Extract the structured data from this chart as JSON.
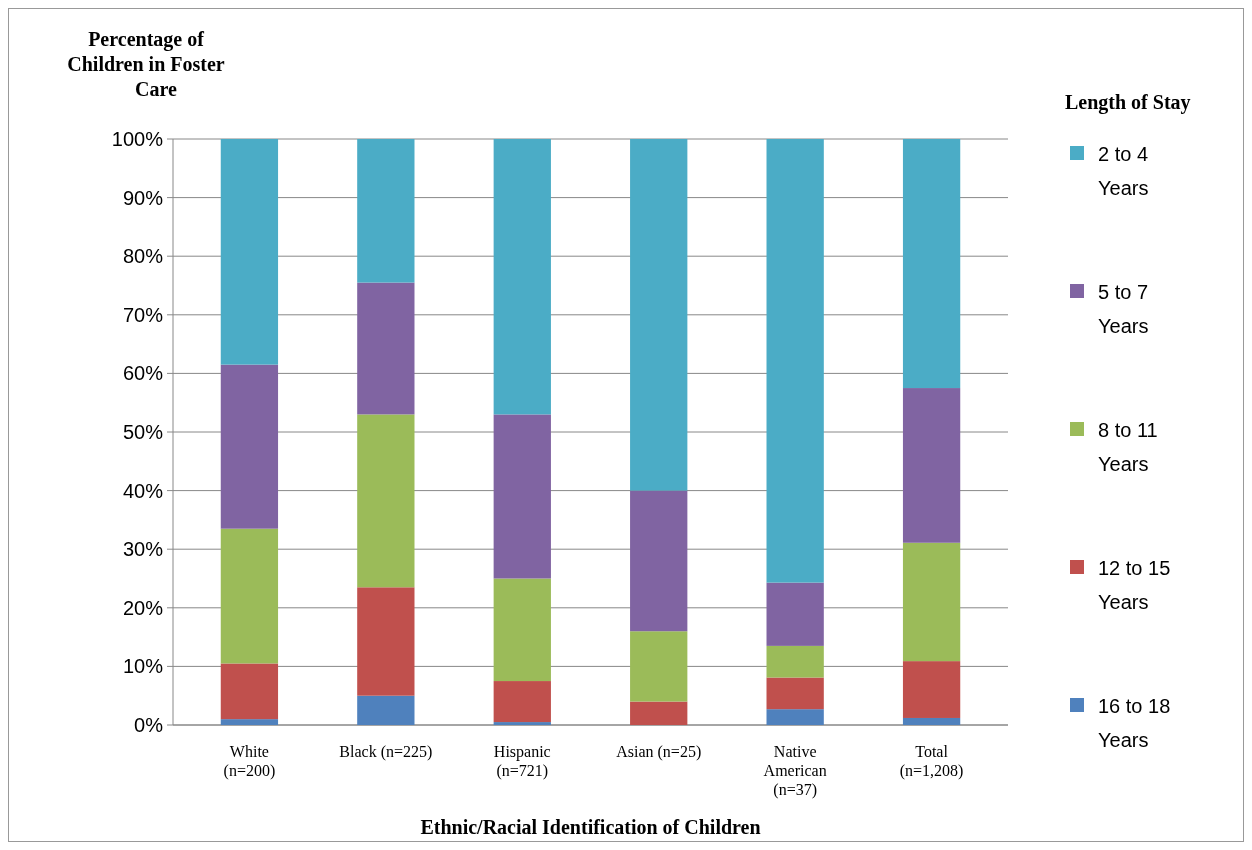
{
  "chart_data": {
    "type": "bar",
    "stacked": true,
    "ylabel": "Percentage of Children in Foster Care",
    "xlabel": "Ethnic/Racial Identification of Children",
    "legend_title": "Length of Stay",
    "legend": "right",
    "grid": "y",
    "categories": [
      "White\n(n=200)",
      "Black (n=225)",
      "Hispanic\n(n=721)",
      "Asian (n=25)",
      "Native\nAmerican\n(n=37)",
      "Total\n(n=1,208)"
    ],
    "ylim": [
      0,
      100
    ],
    "yticks": [
      {
        "value": 0,
        "label": "0%"
      },
      {
        "value": 10,
        "label": "10%"
      },
      {
        "value": 20,
        "label": "20%"
      },
      {
        "value": 30,
        "label": "30%"
      },
      {
        "value": 40,
        "label": "40%"
      },
      {
        "value": 50,
        "label": "50%"
      },
      {
        "value": 60,
        "label": "60%"
      },
      {
        "value": 70,
        "label": "70%"
      },
      {
        "value": 80,
        "label": "80%"
      },
      {
        "value": 90,
        "label": "90%"
      },
      {
        "value": 100,
        "label": "100%"
      }
    ],
    "series": [
      {
        "name": "16 to 18 Years",
        "color": "#4f81bd",
        "values": [
          1,
          5,
          0.5,
          0,
          2.7,
          1.2
        ]
      },
      {
        "name": "12 to 15 Years",
        "color": "#c0504d",
        "values": [
          9.5,
          18.5,
          7,
          4,
          5.4,
          9.7
        ]
      },
      {
        "name": "8 to 11 Years",
        "color": "#9bbb59",
        "values": [
          23,
          29.5,
          17.5,
          12,
          5.4,
          20.2
        ]
      },
      {
        "name": "5 to 7 Years",
        "color": "#8064a2",
        "values": [
          28,
          22.5,
          28,
          24,
          10.8,
          26.4
        ]
      },
      {
        "name": "2 to 4 Years",
        "color": "#4bacc6",
        "values": [
          38.5,
          24.5,
          47,
          60,
          75.7,
          42.5
        ]
      }
    ]
  }
}
